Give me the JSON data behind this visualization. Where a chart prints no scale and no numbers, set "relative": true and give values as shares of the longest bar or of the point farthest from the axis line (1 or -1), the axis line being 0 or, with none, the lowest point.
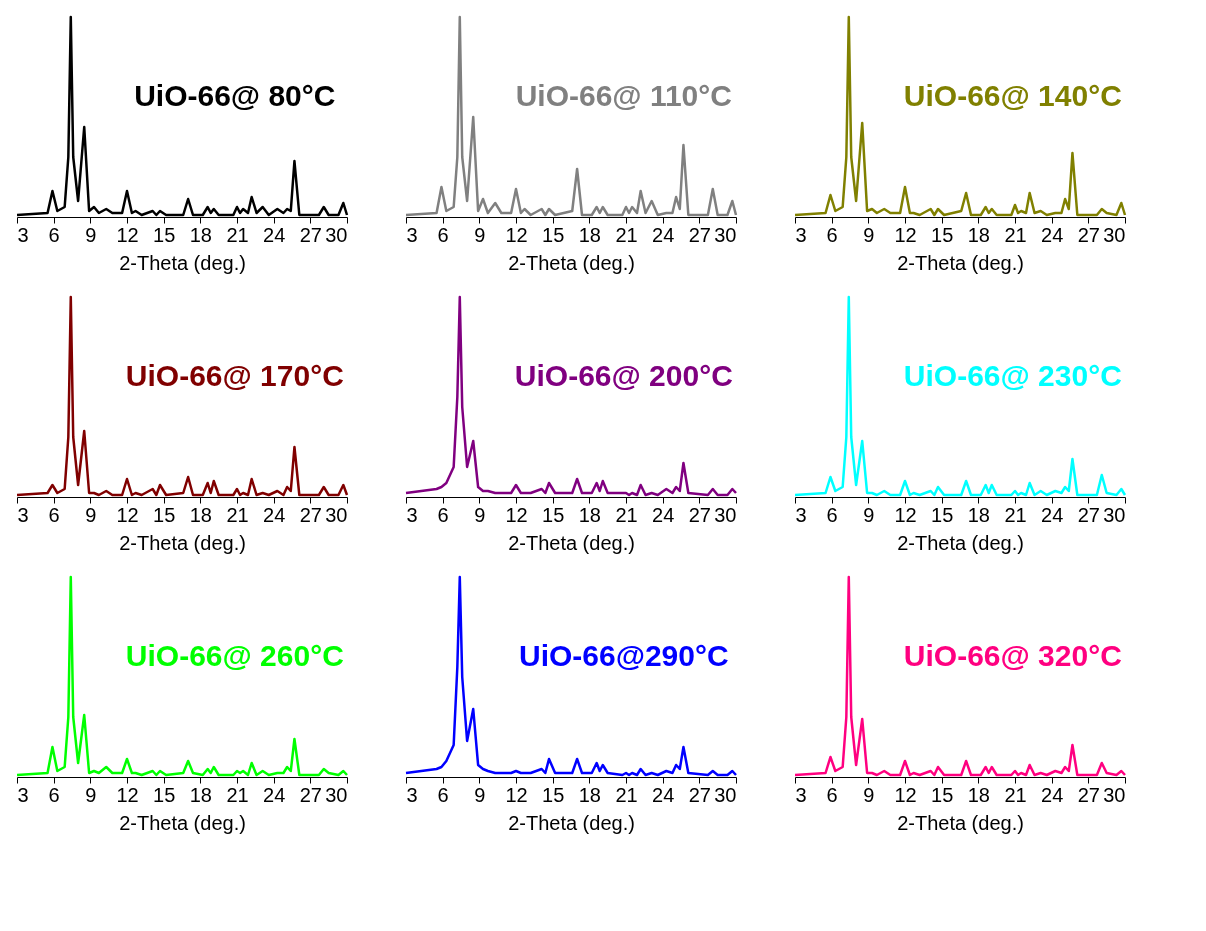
{
  "chart_data": [
    {
      "type": "line",
      "relative": true,
      "xlabel": "2-Theta (deg.)",
      "xlim": [
        3,
        30
      ],
      "xticks": [
        3,
        6,
        9,
        12,
        15,
        18,
        21,
        24,
        27,
        30
      ],
      "x": [
        3,
        5.5,
        5.9,
        6.3,
        6.9,
        7.2,
        7.4,
        7.6,
        8.0,
        8.5,
        8.9,
        9.3,
        9.7,
        10.3,
        10.8,
        11.6,
        12.0,
        12.4,
        12.7,
        13.2,
        14.1,
        14.4,
        14.7,
        15.2,
        16.6,
        17.0,
        17.4,
        18.2,
        18.6,
        18.85,
        19.1,
        19.5,
        20.7,
        21.0,
        21.25,
        21.5,
        21.9,
        22.2,
        22.6,
        23.1,
        23.6,
        24.3,
        24.8,
        25.1,
        25.4,
        25.7,
        26.1,
        27.7,
        28.1,
        28.5,
        29.3,
        29.7,
        30
      ],
      "series": [
        {
          "name": "UiO-66@ 80°C",
          "color": "#000000",
          "values": [
            0.01,
            0.02,
            0.13,
            0.03,
            0.05,
            0.3,
            1,
            0.3,
            0.08,
            0.45,
            0.03,
            0.05,
            0.02,
            0.04,
            0.02,
            0.02,
            0.13,
            0.02,
            0.03,
            0.01,
            0.03,
            0.01,
            0.03,
            0.01,
            0.01,
            0.09,
            0.01,
            0.01,
            0.05,
            0.02,
            0.04,
            0.01,
            0.01,
            0.05,
            0.02,
            0.04,
            0.02,
            0.1,
            0.02,
            0.05,
            0.01,
            0.04,
            0.02,
            0.04,
            0.03,
            0.28,
            0.01,
            0.01,
            0.05,
            0.01,
            0.01,
            0.07,
            0.01
          ]
        }
      ]
    },
    {
      "type": "line",
      "relative": true,
      "xlabel": "2-Theta (deg.)",
      "xlim": [
        3,
        30
      ],
      "xticks": [
        3,
        6,
        9,
        12,
        15,
        18,
        21,
        24,
        27,
        30
      ],
      "x": [
        3,
        5.5,
        5.9,
        6.3,
        6.9,
        7.2,
        7.4,
        7.6,
        8.0,
        8.5,
        8.9,
        9.3,
        9.7,
        10.3,
        10.8,
        11.6,
        12.0,
        12.4,
        12.7,
        13.2,
        14.1,
        14.4,
        14.7,
        15.2,
        16.6,
        17.0,
        17.4,
        18.2,
        18.6,
        18.85,
        19.1,
        19.5,
        20.7,
        21.0,
        21.25,
        21.5,
        21.9,
        22.2,
        22.6,
        23.1,
        23.6,
        24.3,
        24.8,
        25.1,
        25.4,
        25.7,
        26.1,
        27.7,
        28.1,
        28.5,
        29.3,
        29.7,
        30
      ],
      "series": [
        {
          "name": "UiO-66@ 110°C",
          "color": "#808080",
          "values": [
            0.01,
            0.02,
            0.15,
            0.03,
            0.05,
            0.3,
            1,
            0.3,
            0.08,
            0.5,
            0.03,
            0.09,
            0.02,
            0.07,
            0.02,
            0.02,
            0.14,
            0.02,
            0.04,
            0.01,
            0.04,
            0.01,
            0.04,
            0.01,
            0.03,
            0.24,
            0.01,
            0.01,
            0.05,
            0.02,
            0.05,
            0.01,
            0.01,
            0.05,
            0.02,
            0.05,
            0.02,
            0.13,
            0.02,
            0.08,
            0.01,
            0.02,
            0.02,
            0.1,
            0.04,
            0.36,
            0.01,
            0.01,
            0.14,
            0.01,
            0.01,
            0.08,
            0.01
          ]
        }
      ]
    },
    {
      "type": "line",
      "relative": true,
      "xlabel": "2-Theta (deg.)",
      "xlim": [
        3,
        30
      ],
      "xticks": [
        3,
        6,
        9,
        12,
        15,
        18,
        21,
        24,
        27,
        30
      ],
      "x": [
        3,
        5.5,
        5.9,
        6.3,
        6.9,
        7.2,
        7.4,
        7.6,
        8.0,
        8.5,
        8.9,
        9.3,
        9.7,
        10.3,
        10.8,
        11.6,
        12.0,
        12.4,
        12.7,
        13.2,
        14.1,
        14.4,
        14.7,
        15.2,
        16.6,
        17.0,
        17.4,
        18.2,
        18.6,
        18.85,
        19.1,
        19.5,
        20.7,
        21.0,
        21.25,
        21.5,
        21.9,
        22.2,
        22.6,
        23.1,
        23.6,
        24.3,
        24.8,
        25.1,
        25.4,
        25.7,
        26.1,
        27.7,
        28.1,
        28.5,
        29.3,
        29.7,
        30
      ],
      "series": [
        {
          "name": "UiO-66@ 140°C",
          "color": "#808000",
          "values": [
            0.01,
            0.02,
            0.11,
            0.03,
            0.05,
            0.3,
            1,
            0.3,
            0.08,
            0.47,
            0.03,
            0.04,
            0.02,
            0.04,
            0.02,
            0.02,
            0.15,
            0.02,
            0.02,
            0.01,
            0.04,
            0.01,
            0.04,
            0.01,
            0.03,
            0.12,
            0.01,
            0.01,
            0.05,
            0.02,
            0.04,
            0.01,
            0.01,
            0.06,
            0.02,
            0.03,
            0.02,
            0.12,
            0.02,
            0.03,
            0.01,
            0.02,
            0.02,
            0.09,
            0.04,
            0.32,
            0.01,
            0.01,
            0.04,
            0.02,
            0.01,
            0.07,
            0.01
          ]
        }
      ]
    },
    {
      "type": "line",
      "relative": true,
      "xlabel": "2-Theta (deg.)",
      "xlim": [
        3,
        30
      ],
      "xticks": [
        3,
        6,
        9,
        12,
        15,
        18,
        21,
        24,
        27,
        30
      ],
      "x": [
        3,
        5.5,
        5.9,
        6.3,
        6.9,
        7.2,
        7.4,
        7.6,
        8.0,
        8.5,
        8.9,
        9.3,
        9.7,
        10.3,
        10.8,
        11.6,
        12.0,
        12.4,
        12.7,
        13.2,
        14.1,
        14.4,
        14.7,
        15.2,
        16.6,
        17.0,
        17.4,
        18.2,
        18.6,
        18.85,
        19.1,
        19.5,
        20.7,
        21.0,
        21.25,
        21.5,
        21.9,
        22.2,
        22.6,
        23.1,
        23.6,
        24.3,
        24.8,
        25.1,
        25.4,
        25.7,
        26.1,
        27.7,
        28.1,
        28.5,
        29.3,
        29.7,
        30
      ],
      "series": [
        {
          "name": "UiO-66@ 170°C",
          "color": "#800000",
          "values": [
            0.01,
            0.02,
            0.06,
            0.02,
            0.04,
            0.3,
            1,
            0.3,
            0.06,
            0.33,
            0.02,
            0.02,
            0.01,
            0.03,
            0.01,
            0.01,
            0.09,
            0.01,
            0.02,
            0.01,
            0.04,
            0.01,
            0.06,
            0.01,
            0.02,
            0.1,
            0.01,
            0.01,
            0.07,
            0.02,
            0.08,
            0.01,
            0.01,
            0.04,
            0.01,
            0.02,
            0.01,
            0.09,
            0.01,
            0.02,
            0.01,
            0.03,
            0.01,
            0.05,
            0.03,
            0.25,
            0.01,
            0.01,
            0.05,
            0.01,
            0.01,
            0.06,
            0.01
          ]
        }
      ]
    },
    {
      "type": "line",
      "relative": true,
      "xlabel": "2-Theta (deg.)",
      "xlim": [
        3,
        30
      ],
      "xticks": [
        3,
        6,
        9,
        12,
        15,
        18,
        21,
        24,
        27,
        30
      ],
      "x": [
        3,
        5.5,
        5.9,
        6.3,
        6.9,
        7.2,
        7.4,
        7.6,
        8.0,
        8.5,
        8.9,
        9.3,
        9.7,
        10.3,
        10.8,
        11.6,
        12.0,
        12.4,
        12.7,
        13.2,
        14.1,
        14.4,
        14.7,
        15.2,
        16.6,
        17.0,
        17.4,
        18.2,
        18.6,
        18.85,
        19.1,
        19.5,
        20.7,
        21.0,
        21.25,
        21.5,
        21.9,
        22.2,
        22.6,
        23.1,
        23.6,
        24.3,
        24.8,
        25.1,
        25.4,
        25.7,
        26.1,
        27.7,
        28.1,
        28.5,
        29.3,
        29.7,
        30
      ],
      "series": [
        {
          "name": "UiO-66@ 200°C",
          "color": "#800080",
          "values": [
            0.02,
            0.04,
            0.05,
            0.07,
            0.15,
            0.5,
            1,
            0.45,
            0.15,
            0.28,
            0.05,
            0.03,
            0.03,
            0.02,
            0.02,
            0.02,
            0.06,
            0.02,
            0.02,
            0.02,
            0.04,
            0.02,
            0.07,
            0.02,
            0.02,
            0.09,
            0.02,
            0.02,
            0.07,
            0.03,
            0.08,
            0.02,
            0.02,
            0.02,
            0.01,
            0.02,
            0.01,
            0.06,
            0.01,
            0.02,
            0.01,
            0.04,
            0.02,
            0.05,
            0.03,
            0.17,
            0.02,
            0.01,
            0.04,
            0.01,
            0.01,
            0.04,
            0.02
          ]
        }
      ]
    },
    {
      "type": "line",
      "relative": true,
      "xlabel": "2-Theta (deg.)",
      "xlim": [
        3,
        30
      ],
      "xticks": [
        3,
        6,
        9,
        12,
        15,
        18,
        21,
        24,
        27,
        30
      ],
      "x": [
        3,
        5.5,
        5.9,
        6.3,
        6.9,
        7.2,
        7.4,
        7.6,
        8.0,
        8.5,
        8.9,
        9.3,
        9.7,
        10.3,
        10.8,
        11.6,
        12.0,
        12.4,
        12.7,
        13.2,
        14.1,
        14.4,
        14.7,
        15.2,
        16.6,
        17.0,
        17.4,
        18.2,
        18.6,
        18.85,
        19.1,
        19.5,
        20.7,
        21.0,
        21.25,
        21.5,
        21.9,
        22.2,
        22.6,
        23.1,
        23.6,
        24.3,
        24.8,
        25.1,
        25.4,
        25.7,
        26.1,
        27.7,
        28.1,
        28.5,
        29.3,
        29.7,
        30
      ],
      "series": [
        {
          "name": "UiO-66@ 230°C",
          "color": "#00ffff",
          "values": [
            0.01,
            0.02,
            0.1,
            0.03,
            0.05,
            0.3,
            1,
            0.3,
            0.06,
            0.28,
            0.02,
            0.02,
            0.01,
            0.03,
            0.01,
            0.01,
            0.08,
            0.01,
            0.02,
            0.01,
            0.03,
            0.01,
            0.05,
            0.01,
            0.01,
            0.08,
            0.01,
            0.01,
            0.06,
            0.02,
            0.06,
            0.01,
            0.01,
            0.03,
            0.01,
            0.02,
            0.01,
            0.07,
            0.01,
            0.03,
            0.01,
            0.03,
            0.02,
            0.05,
            0.03,
            0.19,
            0.01,
            0.01,
            0.11,
            0.02,
            0.01,
            0.04,
            0.01
          ]
        }
      ]
    },
    {
      "type": "line",
      "relative": true,
      "xlabel": "2-Theta (deg.)",
      "xlim": [
        3,
        30
      ],
      "xticks": [
        3,
        6,
        9,
        12,
        15,
        18,
        21,
        24,
        27,
        30
      ],
      "x": [
        3,
        5.5,
        5.9,
        6.3,
        6.9,
        7.2,
        7.4,
        7.6,
        8.0,
        8.5,
        8.9,
        9.3,
        9.7,
        10.3,
        10.8,
        11.6,
        12.0,
        12.4,
        12.7,
        13.2,
        14.1,
        14.4,
        14.7,
        15.2,
        16.6,
        17.0,
        17.4,
        18.2,
        18.6,
        18.85,
        19.1,
        19.5,
        20.7,
        21.0,
        21.25,
        21.5,
        21.9,
        22.2,
        22.6,
        23.1,
        23.6,
        24.3,
        24.8,
        25.1,
        25.4,
        25.7,
        26.1,
        27.7,
        28.1,
        28.5,
        29.3,
        29.7,
        30
      ],
      "series": [
        {
          "name": "UiO-66@ 260°C",
          "color": "#00ff00",
          "values": [
            0.01,
            0.02,
            0.15,
            0.03,
            0.05,
            0.3,
            1,
            0.3,
            0.07,
            0.31,
            0.02,
            0.03,
            0.02,
            0.05,
            0.02,
            0.02,
            0.09,
            0.02,
            0.02,
            0.01,
            0.03,
            0.01,
            0.03,
            0.01,
            0.02,
            0.08,
            0.02,
            0.01,
            0.04,
            0.02,
            0.05,
            0.01,
            0.01,
            0.03,
            0.02,
            0.03,
            0.01,
            0.07,
            0.01,
            0.03,
            0.01,
            0.02,
            0.02,
            0.05,
            0.03,
            0.19,
            0.01,
            0.01,
            0.04,
            0.02,
            0.01,
            0.03,
            0.01
          ]
        }
      ]
    },
    {
      "type": "line",
      "relative": true,
      "xlabel": "2-Theta (deg.)",
      "xlim": [
        3,
        30
      ],
      "xticks": [
        3,
        6,
        9,
        12,
        15,
        18,
        21,
        24,
        27,
        30
      ],
      "x": [
        3,
        5.5,
        5.9,
        6.3,
        6.9,
        7.2,
        7.4,
        7.6,
        8.0,
        8.5,
        8.9,
        9.3,
        9.7,
        10.3,
        10.8,
        11.6,
        12.0,
        12.4,
        12.7,
        13.2,
        14.1,
        14.4,
        14.7,
        15.2,
        16.6,
        17.0,
        17.4,
        18.2,
        18.6,
        18.85,
        19.1,
        19.5,
        20.7,
        21.0,
        21.25,
        21.5,
        21.9,
        22.2,
        22.6,
        23.1,
        23.6,
        24.3,
        24.8,
        25.1,
        25.4,
        25.7,
        26.1,
        27.7,
        28.1,
        28.5,
        29.3,
        29.7,
        30
      ],
      "series": [
        {
          "name": "UiO-66@290°C",
          "color": "#0000ff",
          "values": [
            0.02,
            0.04,
            0.05,
            0.08,
            0.16,
            0.55,
            1,
            0.5,
            0.18,
            0.34,
            0.06,
            0.04,
            0.03,
            0.02,
            0.02,
            0.02,
            0.03,
            0.02,
            0.02,
            0.02,
            0.04,
            0.02,
            0.09,
            0.02,
            0.02,
            0.09,
            0.02,
            0.02,
            0.07,
            0.03,
            0.06,
            0.02,
            0.01,
            0.02,
            0.01,
            0.02,
            0.01,
            0.04,
            0.01,
            0.02,
            0.01,
            0.03,
            0.02,
            0.06,
            0.04,
            0.15,
            0.02,
            0.01,
            0.03,
            0.01,
            0.01,
            0.03,
            0.01
          ]
        }
      ]
    },
    {
      "type": "line",
      "relative": true,
      "xlabel": "2-Theta (deg.)",
      "xlim": [
        3,
        30
      ],
      "xticks": [
        3,
        6,
        9,
        12,
        15,
        18,
        21,
        24,
        27,
        30
      ],
      "x": [
        3,
        5.5,
        5.9,
        6.3,
        6.9,
        7.2,
        7.4,
        7.6,
        8.0,
        8.5,
        8.9,
        9.3,
        9.7,
        10.3,
        10.8,
        11.6,
        12.0,
        12.4,
        12.7,
        13.2,
        14.1,
        14.4,
        14.7,
        15.2,
        16.6,
        17.0,
        17.4,
        18.2,
        18.6,
        18.85,
        19.1,
        19.5,
        20.7,
        21.0,
        21.25,
        21.5,
        21.9,
        22.2,
        22.6,
        23.1,
        23.6,
        24.3,
        24.8,
        25.1,
        25.4,
        25.7,
        26.1,
        27.7,
        28.1,
        28.5,
        29.3,
        29.7,
        30
      ],
      "series": [
        {
          "name": "UiO-66@ 320°C",
          "color": "#ff0080",
          "values": [
            0.01,
            0.02,
            0.1,
            0.03,
            0.05,
            0.3,
            1,
            0.3,
            0.06,
            0.29,
            0.02,
            0.02,
            0.01,
            0.03,
            0.01,
            0.01,
            0.08,
            0.01,
            0.02,
            0.01,
            0.03,
            0.01,
            0.05,
            0.01,
            0.01,
            0.08,
            0.01,
            0.01,
            0.05,
            0.02,
            0.05,
            0.01,
            0.01,
            0.03,
            0.01,
            0.02,
            0.01,
            0.06,
            0.01,
            0.02,
            0.01,
            0.03,
            0.02,
            0.05,
            0.03,
            0.16,
            0.01,
            0.01,
            0.07,
            0.02,
            0.01,
            0.03,
            0.01
          ]
        }
      ]
    }
  ]
}
